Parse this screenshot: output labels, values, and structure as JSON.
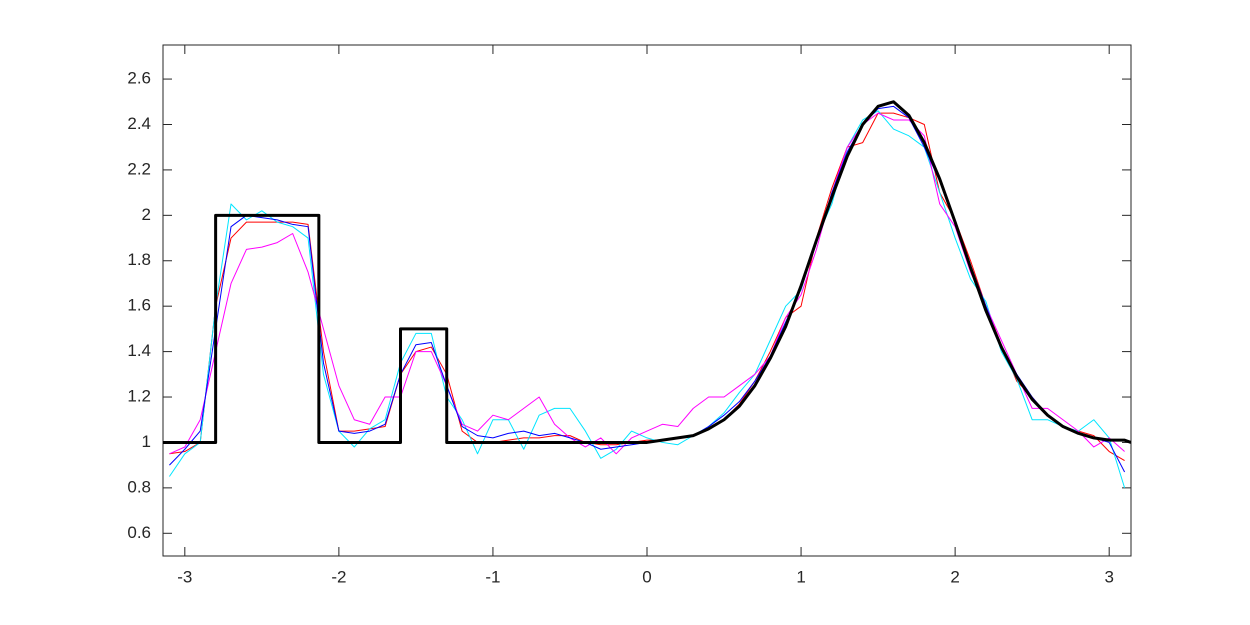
{
  "chart_data": {
    "type": "line",
    "xlim": [
      -3.1416,
      3.1416
    ],
    "ylim": [
      0.5,
      2.75
    ],
    "xticks": [
      -3,
      -2,
      -1,
      0,
      1,
      2,
      3
    ],
    "yticks": [
      0.6,
      0.8,
      1,
      1.2,
      1.4,
      1.6,
      1.8,
      2,
      2.2,
      2.4,
      2.6
    ],
    "x": [
      -3.1,
      -3.0,
      -2.9,
      -2.8,
      -2.7,
      -2.6,
      -2.5,
      -2.4,
      -2.3,
      -2.2,
      -2.1,
      -2.0,
      -1.9,
      -1.8,
      -1.7,
      -1.6,
      -1.5,
      -1.4,
      -1.3,
      -1.2,
      -1.1,
      -1.0,
      -0.9,
      -0.8,
      -0.7,
      -0.6,
      -0.5,
      -0.4,
      -0.3,
      -0.2,
      -0.1,
      0,
      0.1,
      0.2,
      0.3,
      0.4,
      0.5,
      0.6,
      0.7,
      0.8,
      0.9,
      1.0,
      1.1,
      1.2,
      1.3,
      1.4,
      1.5,
      1.6,
      1.7,
      1.8,
      1.9,
      2.0,
      2.1,
      2.2,
      2.3,
      2.4,
      2.5,
      2.6,
      2.7,
      2.8,
      2.9,
      3.0,
      3.1
    ],
    "series": [
      {
        "color": "#ff0000",
        "width": 1,
        "values": [
          0.95,
          0.96,
          1.0,
          1.6,
          1.9,
          1.97,
          1.97,
          1.97,
          1.97,
          1.96,
          1.4,
          1.05,
          1.05,
          1.06,
          1.07,
          1.3,
          1.4,
          1.42,
          1.3,
          1.05,
          1.0,
          1.0,
          1.01,
          1.02,
          1.02,
          1.03,
          1.03,
          1.0,
          0.99,
          0.99,
          1.0,
          1.01,
          1.01,
          1.02,
          1.03,
          1.06,
          1.1,
          1.17,
          1.27,
          1.4,
          1.55,
          1.6,
          1.9,
          2.12,
          2.3,
          2.32,
          2.45,
          2.45,
          2.43,
          2.4,
          2.1,
          1.98,
          1.8,
          1.6,
          1.43,
          1.27,
          1.2,
          1.12,
          1.07,
          1.05,
          1.03,
          0.96,
          0.92
        ]
      },
      {
        "color": "#00e5ff",
        "width": 1,
        "values": [
          0.85,
          0.95,
          1.0,
          1.6,
          2.05,
          1.98,
          2.02,
          1.97,
          1.95,
          1.9,
          1.3,
          1.05,
          0.98,
          1.06,
          1.1,
          1.35,
          1.48,
          1.48,
          1.2,
          1.1,
          0.95,
          1.1,
          1.1,
          0.97,
          1.12,
          1.15,
          1.15,
          1.05,
          0.93,
          0.97,
          1.05,
          1.02,
          1.0,
          0.99,
          1.03,
          1.07,
          1.13,
          1.22,
          1.3,
          1.45,
          1.6,
          1.67,
          1.9,
          2.05,
          2.3,
          2.42,
          2.46,
          2.38,
          2.35,
          2.3,
          2.1,
          1.9,
          1.72,
          1.62,
          1.4,
          1.28,
          1.1,
          1.1,
          1.07,
          1.05,
          1.1,
          1.02,
          0.8
        ]
      },
      {
        "color": "#ff00ff",
        "width": 1,
        "values": [
          0.95,
          0.98,
          1.1,
          1.4,
          1.7,
          1.85,
          1.86,
          1.88,
          1.92,
          1.75,
          1.5,
          1.25,
          1.1,
          1.08,
          1.2,
          1.2,
          1.4,
          1.4,
          1.25,
          1.08,
          1.05,
          1.12,
          1.1,
          1.15,
          1.2,
          1.08,
          1.02,
          0.98,
          1.02,
          0.95,
          1.02,
          1.05,
          1.08,
          1.07,
          1.15,
          1.2,
          1.2,
          1.25,
          1.3,
          1.38,
          1.55,
          1.65,
          1.85,
          2.1,
          2.3,
          2.4,
          2.45,
          2.42,
          2.42,
          2.35,
          2.05,
          1.95,
          1.75,
          1.6,
          1.45,
          1.3,
          1.15,
          1.15,
          1.1,
          1.05,
          0.98,
          1.02,
          0.96
        ]
      },
      {
        "color": "#0000ff",
        "width": 1,
        "values": [
          0.9,
          0.97,
          1.05,
          1.5,
          1.95,
          2.0,
          1.99,
          1.98,
          1.96,
          1.95,
          1.35,
          1.05,
          1.04,
          1.05,
          1.08,
          1.3,
          1.43,
          1.44,
          1.25,
          1.07,
          1.03,
          1.02,
          1.04,
          1.05,
          1.03,
          1.04,
          1.02,
          1.0,
          0.97,
          0.98,
          0.99,
          1.0,
          1.01,
          1.02,
          1.03,
          1.07,
          1.12,
          1.18,
          1.27,
          1.38,
          1.53,
          1.68,
          1.88,
          2.1,
          2.28,
          2.4,
          2.47,
          2.48,
          2.43,
          2.3,
          2.15,
          1.97,
          1.78,
          1.6,
          1.42,
          1.3,
          1.2,
          1.12,
          1.07,
          1.04,
          1.02,
          1.0,
          0.87
        ]
      },
      {
        "color": "#000000",
        "width": 3,
        "x": [
          -3.1416,
          -2.8,
          -2.8,
          -2.13,
          -2.13,
          -1.6,
          -1.6,
          -1.3,
          -1.3,
          0,
          0.1,
          0.2,
          0.3,
          0.4,
          0.5,
          0.6,
          0.7,
          0.8,
          0.9,
          1.0,
          1.1,
          1.2,
          1.3,
          1.4,
          1.5,
          1.6,
          1.7,
          1.8,
          1.9,
          2.0,
          2.1,
          2.2,
          2.3,
          2.4,
          2.5,
          2.6,
          2.7,
          2.8,
          2.9,
          3.0,
          3.1,
          3.1416
        ],
        "values": [
          1,
          1,
          2,
          2,
          1,
          1,
          1.5,
          1.5,
          1,
          1.0,
          1.01,
          1.02,
          1.03,
          1.06,
          1.1,
          1.16,
          1.25,
          1.37,
          1.51,
          1.69,
          1.89,
          2.08,
          2.26,
          2.4,
          2.48,
          2.5,
          2.44,
          2.32,
          2.16,
          1.97,
          1.77,
          1.58,
          1.42,
          1.29,
          1.19,
          1.12,
          1.07,
          1.04,
          1.02,
          1.01,
          1.01,
          1.0
        ]
      }
    ]
  }
}
